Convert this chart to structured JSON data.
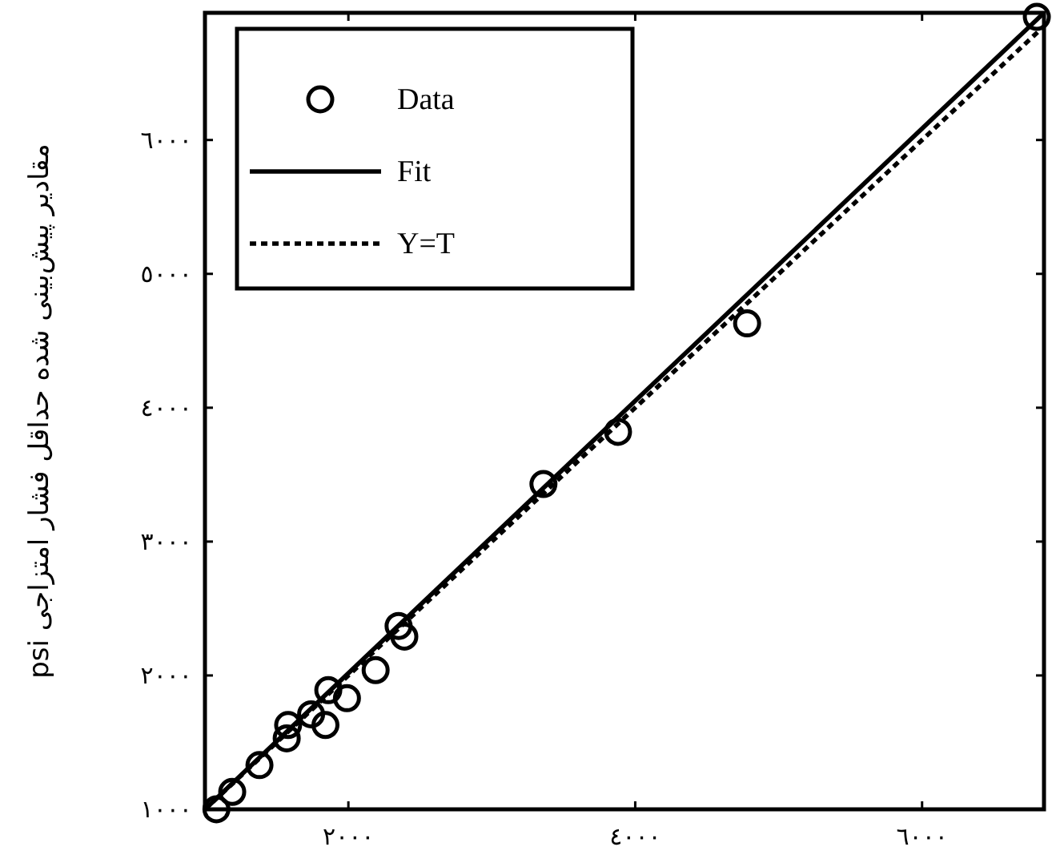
{
  "chart_data": {
    "type": "scatter",
    "ylabel": "مقادیر پیش‌بینی شده حداقل فشار امتزاجی psi",
    "xlim": [
      1000,
      6850
    ],
    "ylim": [
      1000,
      6950
    ],
    "xticks": [
      {
        "value": 2000,
        "label": "٢٠٠٠"
      },
      {
        "value": 4000,
        "label": "٤٠٠٠"
      },
      {
        "value": 6000,
        "label": "٦٠٠٠"
      }
    ],
    "yticks": [
      {
        "value": 1000,
        "label": "١٠٠٠"
      },
      {
        "value": 2000,
        "label": "٢٠٠٠"
      },
      {
        "value": 3000,
        "label": "٣٠٠٠"
      },
      {
        "value": 4000,
        "label": "٤٠٠٠"
      },
      {
        "value": 5000,
        "label": "٥٠٠٠"
      },
      {
        "value": 6000,
        "label": "٦٠٠٠"
      }
    ],
    "legend": "top left",
    "series": [
      {
        "name": "Data",
        "type": "scatter",
        "marker": "circle",
        "color": "#000000",
        "x": [
          1080,
          1190,
          1380,
          1570,
          1580,
          1740,
          1860,
          1840,
          1990,
          2190,
          2350,
          2390,
          3360,
          3880,
          4780,
          6800
        ],
        "values": [
          1000,
          1130,
          1330,
          1530,
          1630,
          1710,
          1890,
          1630,
          1830,
          2040,
          2370,
          2290,
          3430,
          3820,
          4630,
          6920
        ]
      },
      {
        "name": "Fit",
        "type": "line",
        "line_style": "solid",
        "color": "#000000",
        "x": [
          1000,
          6850
        ],
        "values": [
          1000,
          6950
        ]
      },
      {
        "name": "Y=T",
        "type": "line",
        "line_style": "dashed",
        "color": "#000000",
        "x": [
          1000,
          6850
        ],
        "values": [
          1000,
          6850
        ]
      }
    ]
  }
}
